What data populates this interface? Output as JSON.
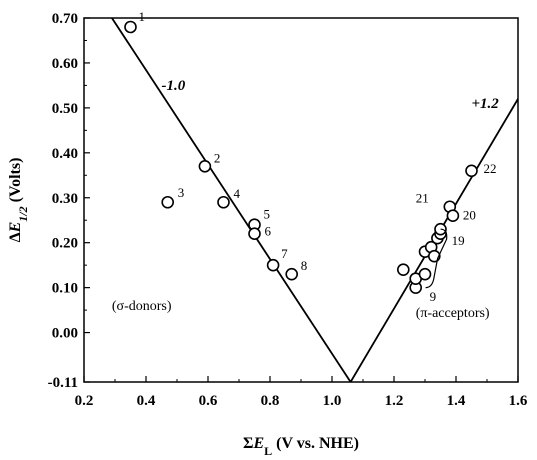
{
  "chart_data": {
    "type": "scatter",
    "xlabel": "ΣE_L (V vs. NHE)",
    "ylabel": "ΔE_1/2 (Volts)",
    "xlim": [
      0.2,
      1.6
    ],
    "ylim": [
      -0.11,
      0.7
    ],
    "x_ticks": [
      "0.2",
      "0.4",
      "0.6",
      "0.8",
      "1.0",
      "1.2",
      "1.4",
      "1.6"
    ],
    "y_ticks": [
      "-0.11",
      "0.00",
      "0.10",
      "0.20",
      "0.30",
      "0.40",
      "0.50",
      "0.60",
      "0.70"
    ],
    "grid": false,
    "series": [
      {
        "points": [
          {
            "x": 0.35,
            "y": 0.68,
            "label": "1"
          },
          {
            "x": 0.59,
            "y": 0.37,
            "label": "2"
          },
          {
            "x": 0.47,
            "y": 0.29,
            "label": "3"
          },
          {
            "x": 0.65,
            "y": 0.29,
            "label": "4"
          },
          {
            "x": 0.75,
            "y": 0.24,
            "label": "5"
          },
          {
            "x": 0.75,
            "y": 0.22,
            "label": "6"
          },
          {
            "x": 0.81,
            "y": 0.15,
            "label": "7"
          },
          {
            "x": 0.87,
            "y": 0.13,
            "label": "8"
          },
          {
            "x": 1.23,
            "y": 0.14
          },
          {
            "x": 1.27,
            "y": 0.1
          },
          {
            "x": 1.27,
            "y": 0.12
          },
          {
            "x": 1.3,
            "y": 0.13
          },
          {
            "x": 1.3,
            "y": 0.18
          },
          {
            "x": 1.32,
            "y": 0.19
          },
          {
            "x": 1.33,
            "y": 0.17
          },
          {
            "x": 1.34,
            "y": 0.21
          },
          {
            "x": 1.35,
            "y": 0.22
          },
          {
            "x": 1.35,
            "y": 0.23
          },
          {
            "x": 1.38,
            "y": 0.28,
            "label": "21"
          },
          {
            "x": 1.39,
            "y": 0.26,
            "label": "20"
          },
          {
            "x": 1.45,
            "y": 0.36,
            "label": "22"
          }
        ]
      }
    ],
    "lines": [
      {
        "slope_label": "-1.0",
        "from": [
          0.29,
          0.7
        ],
        "to": [
          1.06,
          -0.11
        ]
      },
      {
        "slope_label": "+1.2",
        "from": [
          1.06,
          -0.11
        ],
        "to": [
          1.6,
          0.52
        ]
      }
    ],
    "annotations": {
      "sigma_donors": "(σ-donors)",
      "pi_acceptors": "(π-acceptors)",
      "bracket_upper": "19",
      "bracket_lower": "9"
    }
  }
}
